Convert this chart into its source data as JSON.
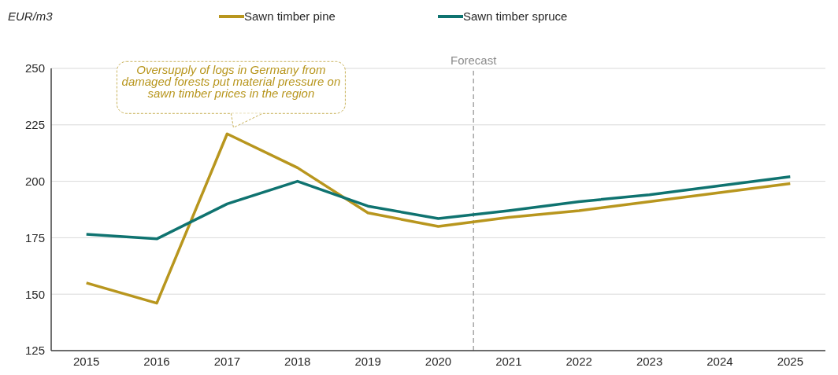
{
  "chart_data": {
    "type": "line",
    "ylabel": "EUR/m3",
    "x": [
      2015,
      2016,
      2017,
      2018,
      2019,
      2020,
      2021,
      2022,
      2023,
      2024,
      2025
    ],
    "xlim": [
      2014.5,
      2025.5
    ],
    "xticks": [
      2015,
      2016,
      2017,
      2018,
      2019,
      2020,
      2021,
      2022,
      2023,
      2024,
      2025
    ],
    "ylim": [
      125,
      250
    ],
    "yticks": [
      125,
      150,
      175,
      200,
      225,
      250
    ],
    "series": [
      {
        "name": "Sawn timber pine",
        "color": "#b8961e",
        "values": [
          155,
          146,
          221,
          206,
          186,
          180,
          184,
          187,
          191,
          195,
          199
        ]
      },
      {
        "name": "Sawn timber spruce",
        "color": "#0f7370",
        "values": [
          176.5,
          174.5,
          190,
          200,
          189,
          183.5,
          187,
          191,
          194,
          198,
          202
        ]
      }
    ],
    "ref_lines": [
      {
        "axis": "x",
        "value": 2020.5,
        "label": "Forecast",
        "color": "#a6a6a6",
        "line_style": "dashed"
      }
    ],
    "annotations": [
      {
        "text": "Oversupply of logs in Germany from damaged forests put material pressure on sawn timber prices in the region",
        "x": 2017,
        "y": 221
      }
    ],
    "grid": "y",
    "legend": "top",
    "marker": "none",
    "line_style": "solid"
  }
}
